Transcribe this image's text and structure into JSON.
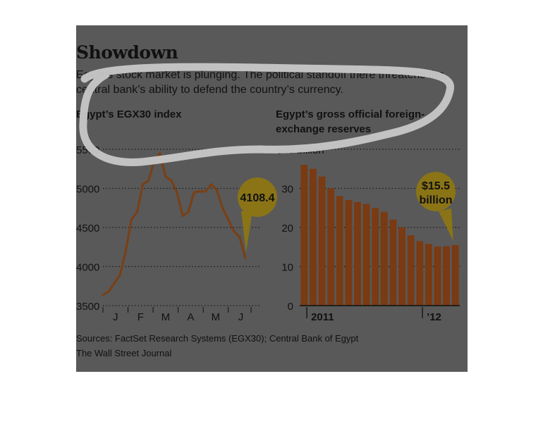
{
  "header": {
    "title": "Showdown",
    "subtitle": "Egypt’s stock market is plunging. The political standoff there threatens the central bank’s ability to defend the country’s currency."
  },
  "footer": {
    "sources": "Sources: FactSet Research Systems (EGX30); Central Bank of Egypt",
    "publisher": "The Wall Street Journal"
  },
  "colors": {
    "panel": "#595959",
    "line": "#7a3f14",
    "bar": "#7a3a12",
    "callout": "#8a7416",
    "highlight": "#c8c8c8"
  },
  "chart_data": [
    {
      "type": "line",
      "title": "Egypt’s EGX30 index",
      "ylim": [
        3500,
        5500
      ],
      "yticks": [
        3500,
        4000,
        4500,
        5000,
        5500
      ],
      "ytick_labels": [
        "3500",
        "4000",
        "4500",
        "5000",
        "5500"
      ],
      "xlim": [
        0,
        26
      ],
      "xtick_labels": [
        "J",
        "F",
        "M",
        "A",
        "M",
        "J"
      ],
      "xtick_positions": [
        2.2,
        6.6,
        11.0,
        15.4,
        19.8,
        24.2
      ],
      "x": [
        0,
        1,
        2,
        3,
        4,
        5,
        6,
        7,
        8,
        9,
        10,
        11,
        12,
        13,
        14,
        15,
        16,
        17,
        18,
        19,
        20,
        21,
        22,
        23,
        24,
        25
      ],
      "values": [
        3640,
        3680,
        3790,
        3890,
        4200,
        4600,
        4700,
        5050,
        5100,
        5350,
        5450,
        5150,
        5100,
        4950,
        4650,
        4700,
        4950,
        4960,
        4960,
        5050,
        4980,
        4750,
        4600,
        4450,
        4380,
        4108.4
      ],
      "annotation": {
        "label": "4108.4",
        "x": 25,
        "value": 4108.4
      }
    },
    {
      "type": "bar",
      "title": "Egypt’s gross official foreign-exchange reserves",
      "ylim": [
        0,
        40
      ],
      "yticks": [
        0,
        10,
        20,
        30,
        40
      ],
      "ytick_labels": [
        "0",
        "10",
        "20",
        "30",
        "$40 billion"
      ],
      "values": [
        36,
        35,
        33,
        30,
        28,
        27,
        26.5,
        26,
        25,
        24,
        22,
        20,
        18,
        16.5,
        15.8,
        15.1,
        15.2,
        15.5
      ],
      "xtick_labels": [
        "2011",
        "’12"
      ],
      "xtick_bar_index": [
        0,
        13
      ],
      "annotation": {
        "label_line1": "$15.5",
        "label_line2": "billion",
        "bar_index": 17,
        "value": 15.5
      }
    }
  ]
}
